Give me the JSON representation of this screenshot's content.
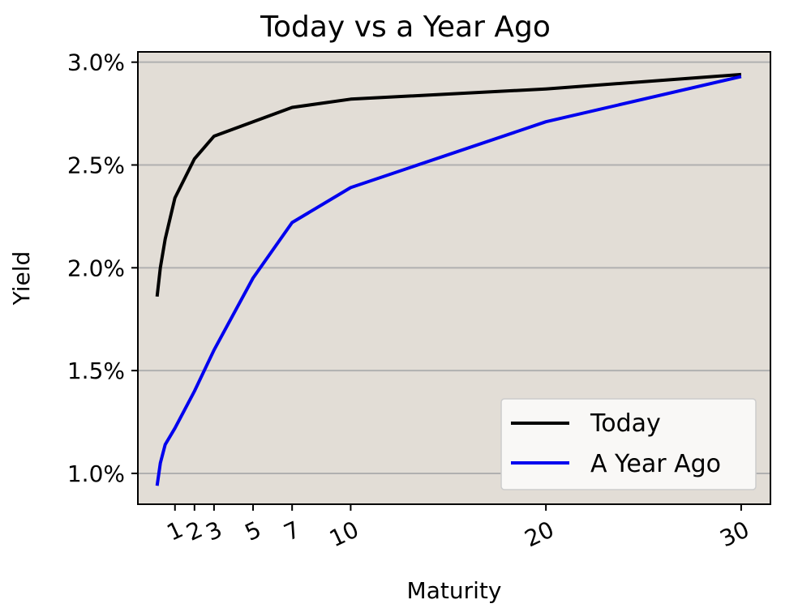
{
  "chart_data": {
    "type": "line",
    "title": "Today vs a Year Ago",
    "xlabel": "Maturity",
    "ylabel": "Yield",
    "xlim": [
      -0.9,
      31.5
    ],
    "ylim": [
      0.85,
      3.05
    ],
    "x_ticks": [
      {
        "value": 1,
        "label": "1"
      },
      {
        "value": 2,
        "label": "2"
      },
      {
        "value": 3,
        "label": "3"
      },
      {
        "value": 5,
        "label": "5"
      },
      {
        "value": 7,
        "label": "7"
      },
      {
        "value": 10,
        "label": "10"
      },
      {
        "value": 20,
        "label": "20"
      },
      {
        "value": 30,
        "label": "30"
      }
    ],
    "y_ticks": [
      {
        "value": 1.0,
        "label": "1.0%"
      },
      {
        "value": 1.5,
        "label": "1.5%"
      },
      {
        "value": 2.0,
        "label": "2.0%"
      },
      {
        "value": 2.5,
        "label": "2.5%"
      },
      {
        "value": 3.0,
        "label": "3.0%"
      }
    ],
    "grid": "y",
    "legend": "bottom-right",
    "background_color": "#e2ddd6",
    "grid_color": "#b0b0b0",
    "x": [
      0.0833,
      0.25,
      0.5,
      1,
      2,
      3,
      5,
      7,
      10,
      20,
      30
    ],
    "series": [
      {
        "name": "Today",
        "color": "#000000",
        "values": [
          1.86,
          2.0,
          2.14,
          2.34,
          2.53,
          2.64,
          2.71,
          2.78,
          2.82,
          2.87,
          2.94
        ]
      },
      {
        "name": "A Year Ago",
        "color": "#0000ee",
        "values": [
          0.94,
          1.05,
          1.14,
          1.22,
          1.4,
          1.6,
          1.95,
          2.22,
          2.39,
          2.71,
          2.93
        ]
      }
    ]
  }
}
